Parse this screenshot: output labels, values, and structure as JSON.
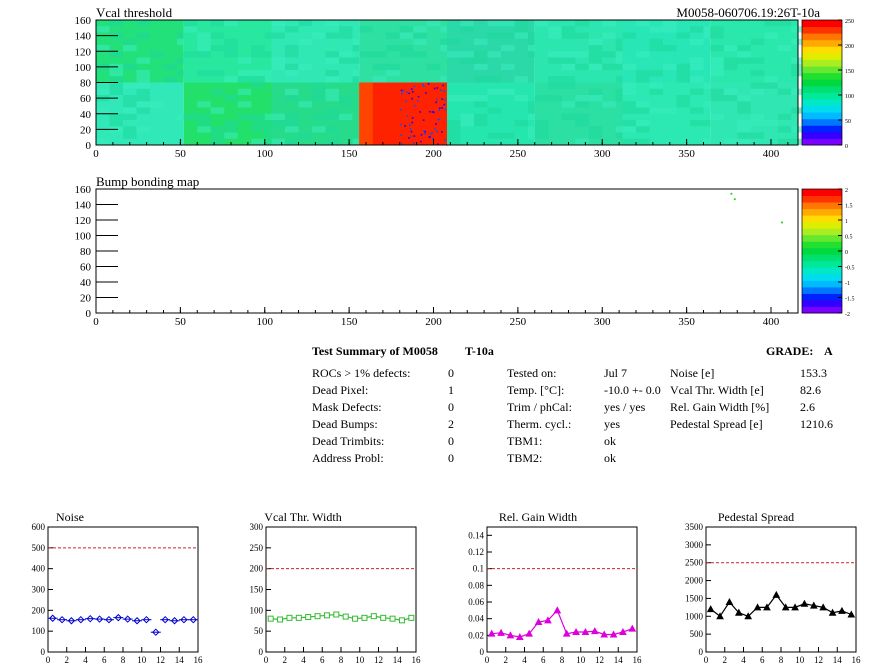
{
  "module_id": "M0058-060706.19:26T-10a",
  "heatmaps": [
    {
      "title": "Vcal threshold",
      "x_ticks": [
        0,
        50,
        100,
        150,
        200,
        250,
        300,
        350,
        400
      ],
      "y_ticks": [
        0,
        20,
        40,
        60,
        80,
        100,
        120,
        140,
        160
      ],
      "palette_labels": [
        "0",
        "50",
        "100",
        "150",
        "200",
        "250"
      ]
    },
    {
      "title": "Bump bonding map",
      "x_ticks": [
        0,
        50,
        100,
        150,
        200,
        250,
        300,
        350,
        400
      ],
      "y_ticks": [
        0,
        20,
        40,
        60,
        80,
        100,
        120,
        140,
        160
      ],
      "palette_labels": [
        "-2",
        "-1.5",
        "-1",
        "-0.5",
        "0",
        "0.5",
        "1",
        "1.5",
        "2"
      ]
    }
  ],
  "summary": {
    "title": "Test Summary of M0058",
    "temp_tag": "T-10a",
    "grade_label": "GRADE:",
    "grade": "A",
    "defects": [
      {
        "label": "ROCs > 1% defects:",
        "value": "0"
      },
      {
        "label": "Dead Pixel:",
        "value": "1"
      },
      {
        "label": "Mask Defects:",
        "value": "0"
      },
      {
        "label": "Dead Bumps:",
        "value": "2"
      },
      {
        "label": "Dead Trimbits:",
        "value": "0"
      },
      {
        "label": "Address Probl:",
        "value": "0"
      }
    ],
    "conditions": [
      {
        "label": "Tested on:",
        "value": "Jul 7"
      },
      {
        "label": "Temp. [°C]:",
        "value": "-10.0 +- 0.0"
      },
      {
        "label": "Trim / phCal:",
        "value": "yes / yes"
      },
      {
        "label": "Therm. cycl.:",
        "value": "yes"
      },
      {
        "label": "TBM1:",
        "value": "ok"
      },
      {
        "label": "TBM2:",
        "value": "ok"
      }
    ],
    "metrics": [
      {
        "label": "Noise [e]",
        "value": "153.3"
      },
      {
        "label": "Vcal Thr. Width [e]",
        "value": "82.6"
      },
      {
        "label": "Rel. Gain Width [%]",
        "value": "2.6"
      },
      {
        "label": "Pedestal Spread [e]",
        "value": "1210.6"
      }
    ]
  },
  "chart_data": [
    {
      "type": "scatter",
      "title": "Noise",
      "x": [
        0,
        1,
        2,
        3,
        4,
        5,
        6,
        7,
        8,
        9,
        10,
        11,
        12,
        13,
        14,
        15
      ],
      "values": [
        162,
        155,
        150,
        155,
        160,
        158,
        155,
        165,
        158,
        150,
        155,
        95,
        155,
        150,
        155,
        155
      ],
      "ylim": [
        0,
        600
      ],
      "y_ticks": [
        0,
        100,
        200,
        300,
        400,
        500,
        600
      ],
      "x_ticks": [
        0,
        2,
        4,
        6,
        8,
        10,
        12,
        14,
        16
      ],
      "threshold": 500,
      "color": "#0000cc",
      "marker": "diamond"
    },
    {
      "type": "line",
      "title": "Vcal Thr. Width",
      "x": [
        0,
        1,
        2,
        3,
        4,
        5,
        6,
        7,
        8,
        9,
        10,
        11,
        12,
        13,
        14,
        15
      ],
      "values": [
        80,
        78,
        82,
        82,
        84,
        86,
        88,
        90,
        85,
        80,
        82,
        86,
        82,
        80,
        76,
        82
      ],
      "ylim": [
        0,
        300
      ],
      "y_ticks": [
        0,
        50,
        100,
        150,
        200,
        250,
        300
      ],
      "x_ticks": [
        0,
        2,
        4,
        6,
        8,
        10,
        12,
        14,
        16
      ],
      "threshold": 200,
      "color": "#33bb33",
      "marker": "square"
    },
    {
      "type": "line",
      "title": "Rel. Gain Width",
      "x": [
        0,
        1,
        2,
        3,
        4,
        5,
        6,
        7,
        8,
        9,
        10,
        11,
        12,
        13,
        14,
        15
      ],
      "values": [
        0.022,
        0.023,
        0.02,
        0.018,
        0.022,
        0.036,
        0.038,
        0.05,
        0.022,
        0.024,
        0.024,
        0.025,
        0.021,
        0.021,
        0.024,
        0.028
      ],
      "ylim": [
        0,
        0.15
      ],
      "y_ticks": [
        0,
        0.02,
        0.04,
        0.06,
        0.08,
        0.1,
        0.12,
        0.14
      ],
      "y_tick_labels": [
        "0",
        "0.02",
        "0.04",
        "0.06",
        "0.08",
        "0.1",
        "0.12",
        "0.14"
      ],
      "x_ticks": [
        0,
        2,
        4,
        6,
        8,
        10,
        12,
        14,
        16
      ],
      "threshold": 0.1,
      "color": "#dd00dd",
      "marker": "triangle"
    },
    {
      "type": "line",
      "title": "Pedestal Spread",
      "x": [
        0,
        1,
        2,
        3,
        4,
        5,
        6,
        7,
        8,
        9,
        10,
        11,
        12,
        13,
        14,
        15
      ],
      "values": [
        1200,
        1000,
        1400,
        1100,
        1000,
        1250,
        1250,
        1600,
        1250,
        1250,
        1350,
        1300,
        1250,
        1100,
        1150,
        1050
      ],
      "ylim": [
        0,
        3500
      ],
      "y_ticks": [
        0,
        500,
        1000,
        1500,
        2000,
        2500,
        3000,
        3500
      ],
      "x_ticks": [
        0,
        2,
        4,
        6,
        8,
        10,
        12,
        14,
        16
      ],
      "threshold": 2500,
      "color": "#000000",
      "marker": "triangle"
    }
  ]
}
